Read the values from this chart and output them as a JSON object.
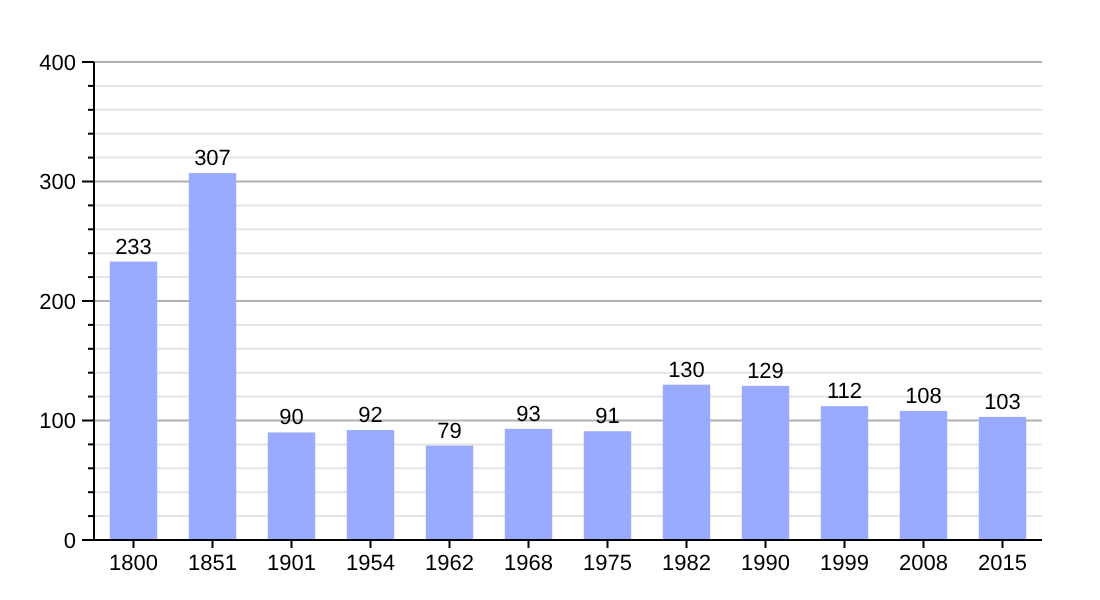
{
  "chart_data": {
    "type": "bar",
    "categories": [
      "1800",
      "1851",
      "1901",
      "1954",
      "1962",
      "1968",
      "1975",
      "1982",
      "1990",
      "1999",
      "2008",
      "2015"
    ],
    "values": [
      233,
      307,
      90,
      92,
      79,
      93,
      91,
      130,
      129,
      112,
      108,
      103
    ],
    "color": "#99aaff",
    "data_labels": true,
    "grid": true,
    "ylim": [
      0,
      400
    ],
    "yticks": [
      0,
      {
        "value": 20,
        "label": null
      },
      {
        "value": 40,
        "label": null
      },
      {
        "value": 60,
        "label": null
      },
      {
        "value": 80,
        "label": null
      },
      100,
      {
        "value": 120,
        "label": null
      },
      {
        "value": 140,
        "label": null
      },
      {
        "value": 160,
        "label": null
      },
      {
        "value": 180,
        "label": null
      },
      200,
      {
        "value": 220,
        "label": null
      },
      {
        "value": 240,
        "label": null
      },
      {
        "value": 260,
        "label": null
      },
      {
        "value": 280,
        "label": null
      },
      300,
      {
        "value": 320,
        "label": null
      },
      {
        "value": 340,
        "label": null
      },
      {
        "value": 360,
        "label": null
      },
      {
        "value": 380,
        "label": null
      },
      400
    ]
  }
}
